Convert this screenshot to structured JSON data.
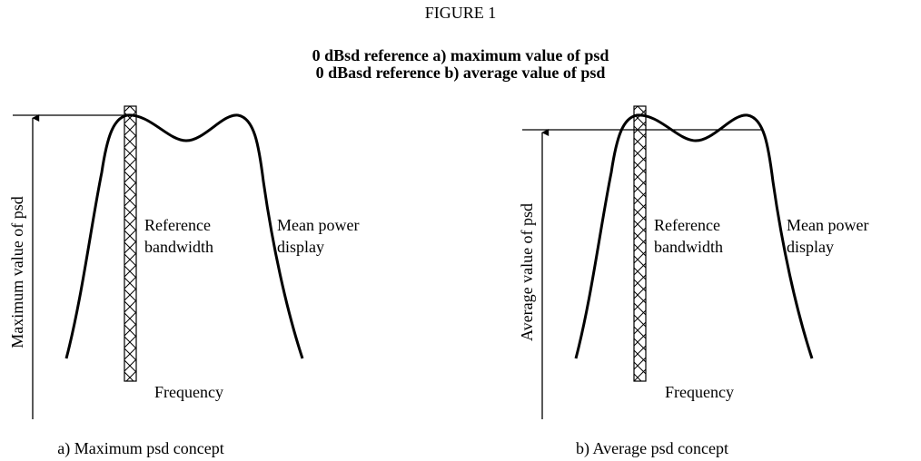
{
  "figure_label": "FIGURE 1",
  "title_lines": [
    "0 dBsd reference a) maximum value of psd",
    "0 dBasd reference b) average value of psd"
  ],
  "panels": [
    {
      "y_axis_label": "Maximum value of psd",
      "bar_label": [
        "Reference",
        "bandwidth"
      ],
      "curve_label": [
        "Mean power",
        "display"
      ],
      "x_axis_label": "Frequency",
      "caption": "a) Maximum psd concept"
    },
    {
      "y_axis_label": "Average value of psd",
      "bar_label": [
        "Reference",
        "bandwidth"
      ],
      "curve_label": [
        "Mean power",
        "display"
      ],
      "x_axis_label": "Frequency",
      "caption": "b) Average psd concept"
    }
  ]
}
